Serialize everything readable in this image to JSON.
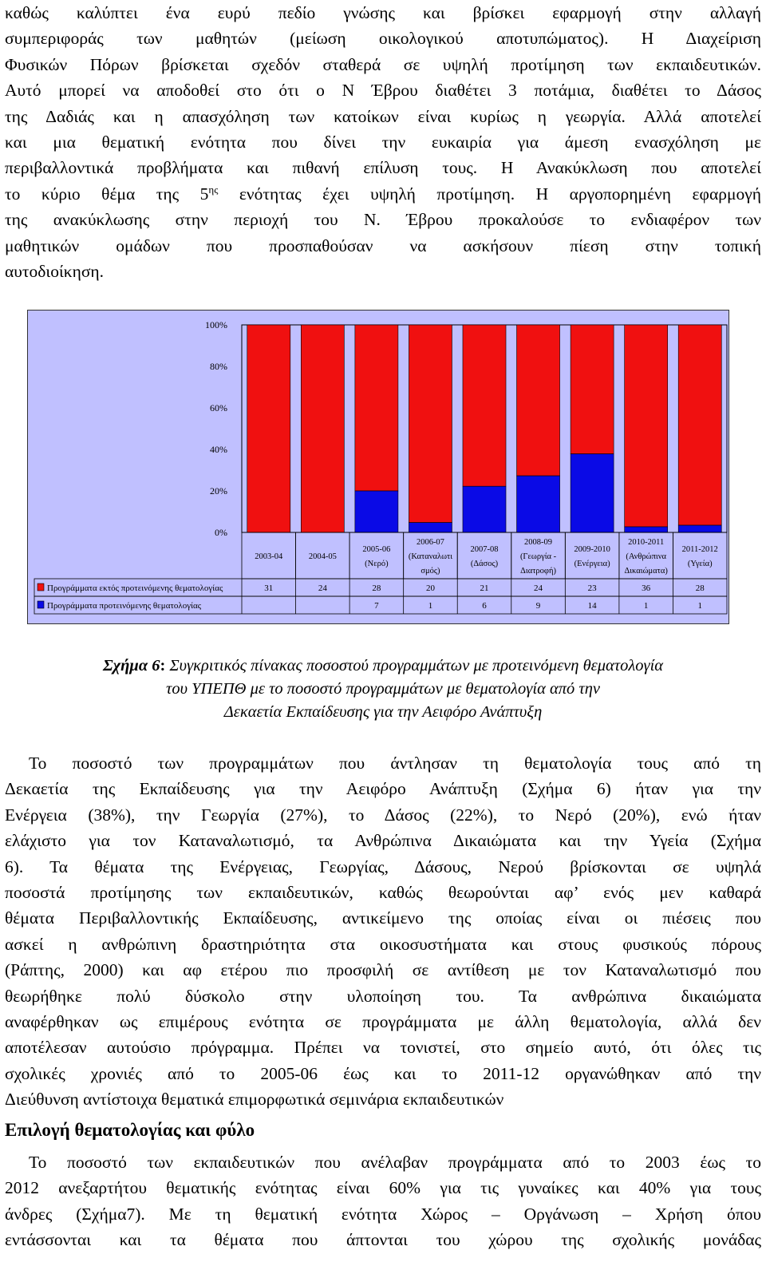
{
  "p1_lines": [
    "καθώς καλύπτει ένα ευρύ πεδίο γνώσης και βρίσκει εφαρμογή στην αλλαγή",
    "συμπεριφοράς των μαθητών (μείωση οικολογικού αποτυπώματος). Η Διαχείριση",
    "Φυσικών Πόρων βρίσκεται σχεδόν σταθερά σε υψηλή προτίμηση των εκπαιδευτικών.",
    "Αυτό μπορεί να αποδοθεί στο ότι ο Ν Έβρου διαθέτει 3 ποτάμια, διαθέτει το Δάσος",
    "της Δαδιάς και η απασχόληση των κατοίκων είναι κυρίως η γεωργία. Αλλά αποτελεί",
    "και μια θεματική ενότητα που δίνει την ευκαιρία για άμεση ενασχόληση με",
    "περιβαλλοντικά προβλήματα και πιθανή επίλυση τους. Η Ανακύκλωση που αποτελεί"
  ],
  "p1_line8_pre": "το κύριο θέμα της 5",
  "p1_line8_sup": "ης",
  "p1_line8_post": " ενότητας έχει υψηλή προτίμηση. Η αργοπορημένη εφαρμογή",
  "p1_lines_tail": [
    "της ανακύκλωσης στην περιοχή του Ν. Έβρου προκαλούσε το ενδιαφέρον των",
    "μαθητικών ομάδων που προσπαθούσαν να ασκήσουν πίεση στην τοπική",
    "αυτοδιοίκηση."
  ],
  "caption": {
    "lead": "Σχήμα 6",
    "colon": ":",
    "line1": " Συγκριτικός πίνακας ποσοστού προγραμμάτων με προτεινόμενη θεματολογία",
    "line2": "του ΥΠΕΠΘ με το ποσοστό προγραμμάτων με θεματολογία από την",
    "line3": "Δεκαετία Εκπαίδευσης για την Αειφόρο Ανάπτυξη"
  },
  "p3_lines": [
    "Το ποσοστό των προγραμμάτων που άντλησαν τη θεματολογία τους από τη",
    "Δεκαετία της Εκπαίδευσης για την Αειφόρο Ανάπτυξη (Σχήμα 6) ήταν για την",
    "Ενέργεια (38%), την Γεωργία (27%), το Δάσος (22%), το Νερό (20%), ενώ ήταν",
    "ελάχιστο για τον Καταναλωτισμό, τα Ανθρώπινα Δικαιώματα και την Υγεία (Σχήμα",
    "6). Τα θέματα της Ενέργειας, Γεωργίας, Δάσους, Νερού βρίσκονται σε υψηλά",
    "ποσοστά προτίμησης των εκπαιδευτικών, καθώς θεωρούνται αφ’ ενός μεν καθαρά",
    "θέματα Περιβαλλοντικής Εκπαίδευσης, αντικείμενο της οποίας είναι οι πιέσεις που",
    "ασκεί η ανθρώπινη δραστηριότητα στα οικοσυστήματα και στους φυσικούς πόρους",
    "(Ράπτης, 2000) και αφ ετέρου πιο προσφιλή σε αντίθεση με τον Καταναλωτισμό που",
    "θεωρήθηκε πολύ δύσκολο στην υλοποίηση του. Τα ανθρώπινα δικαιώματα",
    "αναφέρθηκαν ως επιμέρους ενότητα σε προγράμματα με άλλη θεματολογία, αλλά δεν",
    "αποτέλεσαν αυτούσιο πρόγραμμα. Πρέπει να τονιστεί, στο σημείο αυτό, ότι όλες τις",
    "σχολικές χρονιές από το 2005-06 έως και το 2011-12 οργανώθηκαν από την",
    "Διεύθυνση αντίστοιχα θεματικά επιμορφωτικά σεμινάρια εκπαιδευτικών"
  ],
  "heading": "Επιλογή θεματολογίας και φύλο",
  "p4_lines": [
    "Το ποσοστό των εκπαιδευτικών που ανέλαβαν προγράμματα από το 2003 έως το",
    "2012 ανεξαρτήτου θεματικής ενότητας είναι 60% για τις γυναίκες και 40% για τους",
    "άνδρες (Σχήμα7). Με τη θεματική ενότητα Χώρος – Οργάνωση – Χρήση όπου",
    "εντάσσονται και τα θέματα που άπτονται του χώρου της σχολικής μονάδας"
  ],
  "chart_data": {
    "type": "bar",
    "stacked": "percent",
    "y_ticks": [
      "100%",
      "80%",
      "60%",
      "40%",
      "20%",
      "0%"
    ],
    "ylim": [
      0,
      100
    ],
    "categories": [
      [
        "2003-04"
      ],
      [
        "2004-05"
      ],
      [
        "2005-06",
        "(Νερό)"
      ],
      [
        "2006-07",
        "(Καταναλωτι",
        "σμός)"
      ],
      [
        "2007-08",
        "(Δάσος)"
      ],
      [
        "2008-09",
        "(Γεωργία -",
        "Διατροφή)"
      ],
      [
        "2009-2010",
        "(Ενέργεια)"
      ],
      [
        "2010-2011",
        "(Ανθρώπινα",
        "Δικαιώματα)"
      ],
      [
        "2011-2012",
        "(Υγεία)"
      ]
    ],
    "series": [
      {
        "name": "Προγράμματα εκτός προτεινόμενης θεματολογίας",
        "color": "#f01010",
        "values": [
          31,
          24,
          28,
          20,
          21,
          24,
          23,
          36,
          28
        ]
      },
      {
        "name": "Προγράμματα προτεινόμενης θεματολογίας",
        "color": "#0a0ae6",
        "values": [
          null,
          null,
          7,
          1,
          6,
          9,
          14,
          1,
          1
        ]
      }
    ],
    "background": "#c0c0ff",
    "legend": "table-below"
  }
}
